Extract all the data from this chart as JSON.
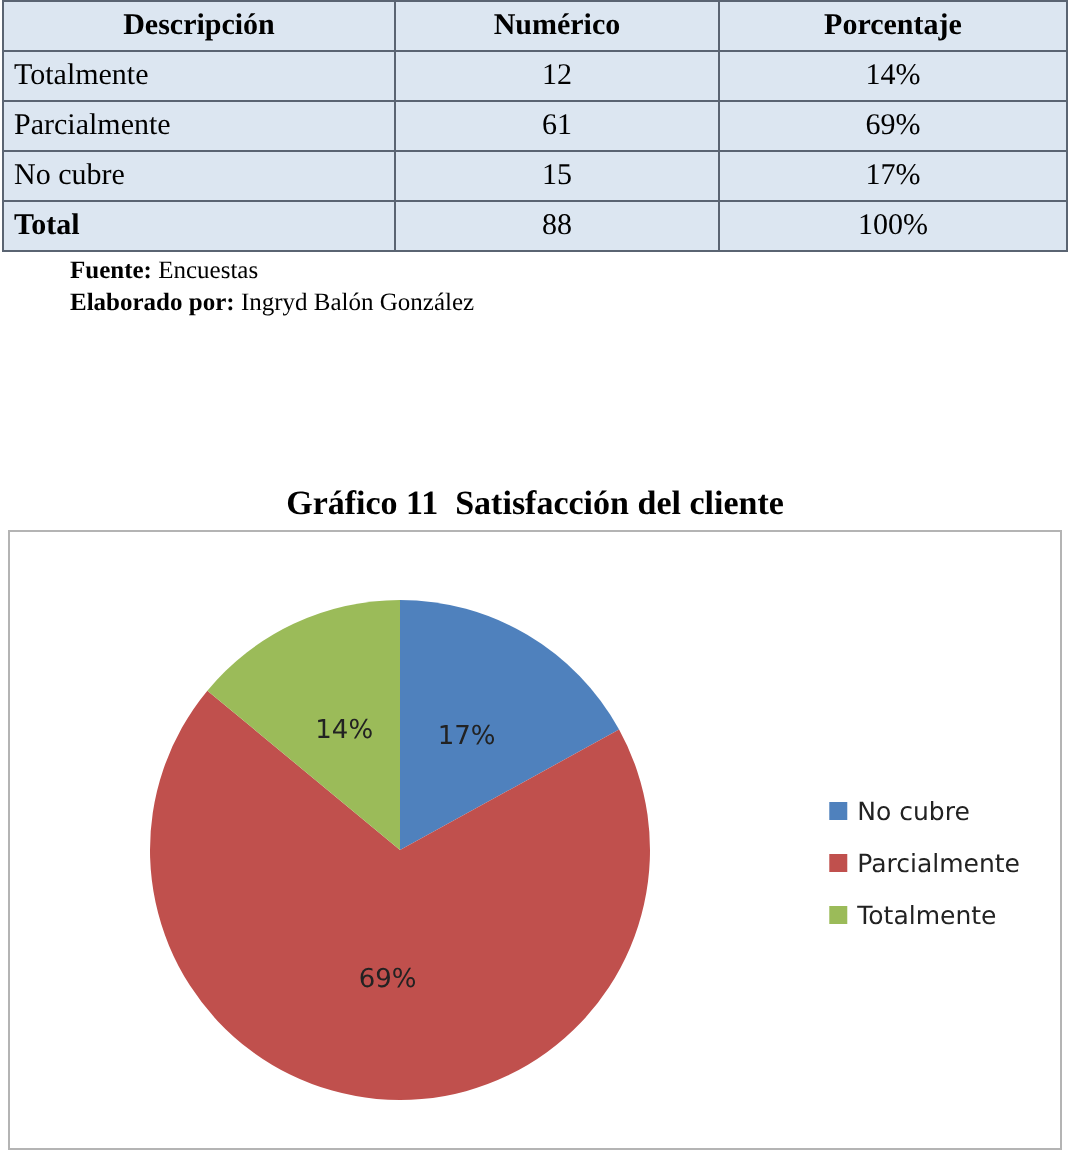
{
  "chart_data": [
    {
      "type": "other",
      "xlabel": "Descripción",
      "categories": [
        "Totalmente",
        "Parcialmente",
        "No cubre",
        "Total"
      ],
      "series": [
        {
          "name": "Numérico",
          "values": [
            12,
            61,
            15,
            88
          ]
        },
        {
          "name": "Porcentaje",
          "values": [
            14,
            69,
            17,
            100
          ],
          "value_labels": [
            "14%",
            "69%",
            "17%",
            "100%"
          ]
        }
      ],
      "data_labels": true,
      "annotations": [
        "Fuente: Encuestas",
        "Elaborado por: Ingryd Balón González"
      ]
    },
    {
      "type": "pie",
      "title": "Gráfico 11  Satisfacción del cliente",
      "categories": [
        "No cubre",
        "Parcialmente",
        "Totalmente"
      ],
      "values": [
        17,
        69,
        14
      ],
      "colors": [
        "#4f81bd",
        "#c0504d",
        "#9bbb59"
      ],
      "value_labels": [
        "17%",
        "69%",
        "14%"
      ],
      "legend": "right"
    }
  ]
}
